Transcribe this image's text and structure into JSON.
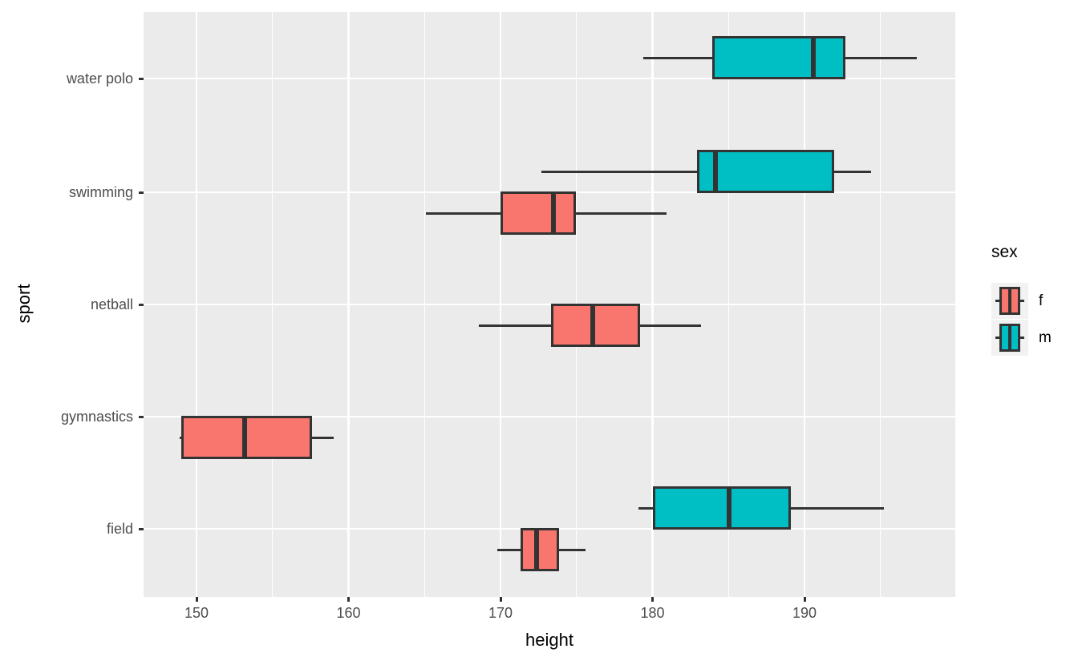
{
  "figure": {
    "xlabel": "height",
    "ylabel": "sport"
  },
  "colors": {
    "female": "#F8766D",
    "male": "#00BFC4",
    "panel_background": "#EBEBEB",
    "box_stroke": "#333333",
    "gridline": "#FFFFFF",
    "tick_label": "#4D4D4D",
    "legend_key_background": "#F2F2F2"
  },
  "legend": {
    "title": "sex",
    "position": "right",
    "entries": [
      {
        "label": "f",
        "color": "#F8766D"
      },
      {
        "label": "m",
        "color": "#00BFC4"
      }
    ]
  },
  "chart_data": {
    "type": "boxplot",
    "orientation": "horizontal",
    "title": "",
    "xlabel": "height",
    "ylabel": "sport",
    "x_ticks": [
      150,
      160,
      170,
      180,
      190
    ],
    "x_tick_labels": [
      "150",
      "160",
      "170",
      "180",
      "190"
    ],
    "x_minor_ticks": [
      155,
      165,
      175,
      185,
      195
    ],
    "x_range": [
      146.6,
      199.8
    ],
    "categories": [
      "water polo",
      "swimming",
      "netball",
      "gymnastics",
      "field"
    ],
    "grid": true,
    "legend_title": "sex",
    "series": [
      {
        "name": "f",
        "color": "#F8766D",
        "boxes": [
          {
            "category": "swimming",
            "min": 165.1,
            "q1": 170.1,
            "median": 173.3,
            "q3": 174.9,
            "max": 180.9
          },
          {
            "category": "netball",
            "min": 168.6,
            "q1": 173.4,
            "median": 175.9,
            "q3": 179.1,
            "max": 183.2
          },
          {
            "category": "gymnastics",
            "min": 148.9,
            "q1": 149.1,
            "median": 153.0,
            "q3": 157.5,
            "max": 159.0
          },
          {
            "category": "field",
            "min": 169.8,
            "q1": 171.4,
            "median": 172.2,
            "q3": 173.8,
            "max": 175.6
          }
        ]
      },
      {
        "name": "m",
        "color": "#00BFC4",
        "boxes": [
          {
            "category": "water polo",
            "min": 179.4,
            "q1": 184.0,
            "median": 190.4,
            "q3": 192.6,
            "max": 197.4
          },
          {
            "category": "swimming",
            "min": 172.7,
            "q1": 183.0,
            "median": 184.0,
            "q3": 191.9,
            "max": 194.4
          },
          {
            "category": "field",
            "min": 179.1,
            "q1": 180.1,
            "median": 184.9,
            "q3": 189.0,
            "max": 195.2
          }
        ]
      }
    ]
  }
}
